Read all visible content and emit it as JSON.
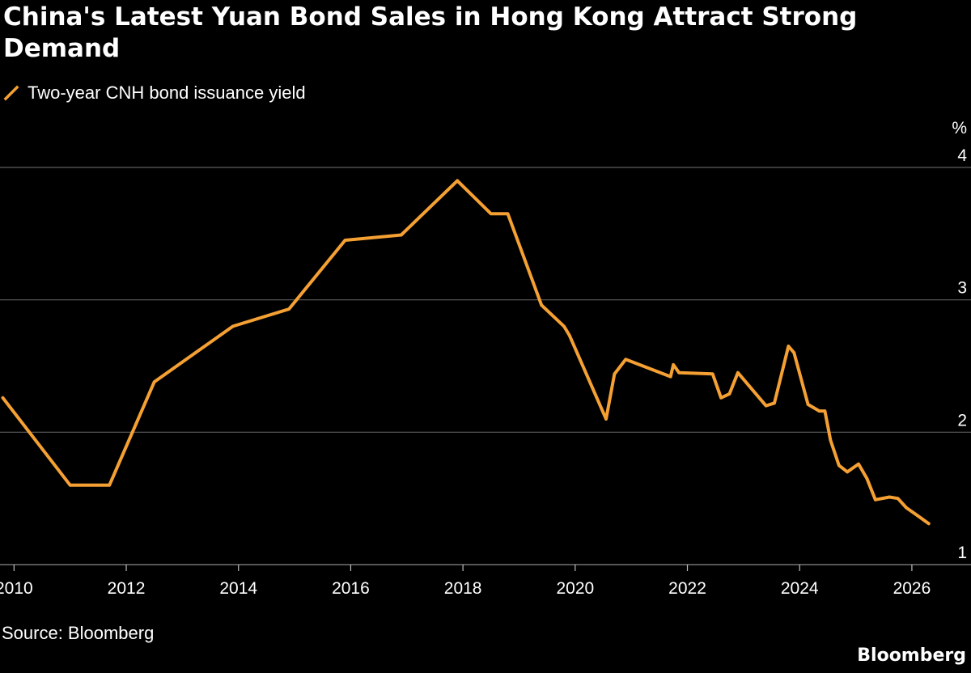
{
  "chart_data": {
    "type": "line",
    "title": "China's Latest Yuan Bond Sales in Hong Kong Attract Strong Demand",
    "ylabel": "%",
    "xlabel": "",
    "ylim": [
      1,
      4
    ],
    "xlim": [
      2009.75,
      2026.65
    ],
    "yticks": [
      1,
      2,
      3,
      4
    ],
    "xticks": [
      2010,
      2012,
      2014,
      2016,
      2018,
      2020,
      2022,
      2024,
      2026
    ],
    "grid": "horizontal",
    "legend_position": "top-left",
    "series": [
      {
        "name": "Two-year CNH bond issuance yield",
        "color": "#f5a033",
        "x": [
          2009.8,
          2011.0,
          2011.7,
          2012.5,
          2013.9,
          2014.9,
          2015.9,
          2016.9,
          2017.9,
          2018.5,
          2018.8,
          2019.4,
          2019.8,
          2019.9,
          2020.55,
          2020.7,
          2020.9,
          2021.7,
          2021.75,
          2021.85,
          2022.45,
          2022.6,
          2022.75,
          2022.9,
          2023.4,
          2023.55,
          2023.8,
          2023.9,
          2024.15,
          2024.35,
          2024.45,
          2024.55,
          2024.7,
          2024.85,
          2025.05,
          2025.2,
          2025.35,
          2025.6,
          2025.75,
          2025.9,
          2026.1,
          2026.3
        ],
        "values": [
          2.26,
          1.6,
          1.6,
          2.38,
          2.8,
          2.93,
          3.45,
          3.49,
          3.9,
          3.65,
          3.65,
          2.96,
          2.8,
          2.73,
          2.1,
          2.44,
          2.55,
          2.42,
          2.51,
          2.45,
          2.44,
          2.26,
          2.29,
          2.45,
          2.2,
          2.22,
          2.65,
          2.6,
          2.21,
          2.16,
          2.16,
          1.94,
          1.75,
          1.7,
          1.76,
          1.65,
          1.49,
          1.51,
          1.5,
          1.43,
          1.37,
          1.31
        ]
      }
    ]
  },
  "source": "Source: Bloomberg",
  "brand": "Bloomberg"
}
